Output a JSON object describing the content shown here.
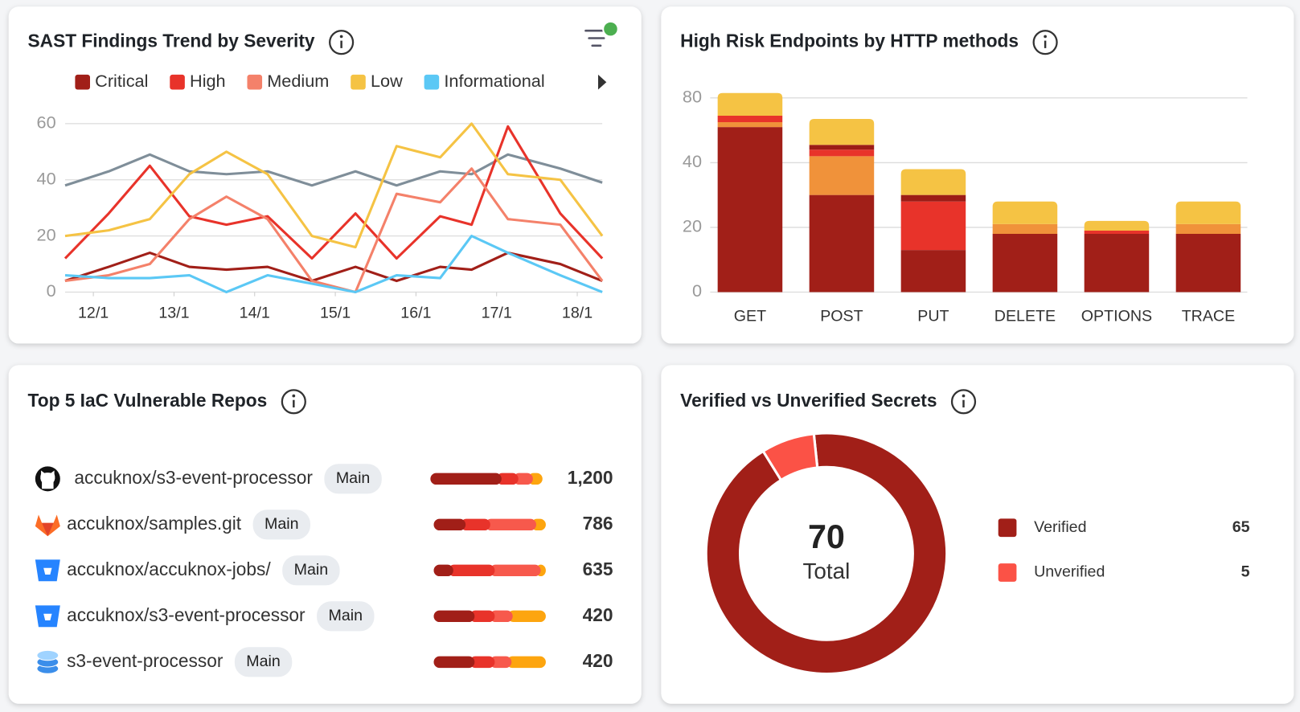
{
  "chart_data": [
    {
      "type": "line",
      "title": "SAST Findings Trend by Severity",
      "x": [
        11.65,
        12.19,
        12.7,
        13.19,
        13.65,
        14.16,
        14.71,
        15.25,
        15.76,
        16.3,
        16.69,
        17.14,
        17.79,
        18.31
      ],
      "xlim": [
        11.65,
        18.31
      ],
      "xticks": [
        {
          "value": 12,
          "label": "12/1"
        },
        {
          "value": 13,
          "label": "13/1"
        },
        {
          "value": 14,
          "label": "14/1"
        },
        {
          "value": 15,
          "label": "15/1"
        },
        {
          "value": 16,
          "label": "16/1"
        },
        {
          "value": 17,
          "label": "17/1"
        },
        {
          "value": 18,
          "label": "18/1"
        }
      ],
      "ylim": [
        0,
        60
      ],
      "yticks": [
        0,
        20,
        40,
        60
      ],
      "grid": true,
      "series": [
        {
          "color": "#7f8e99",
          "values": [
            38,
            43,
            49,
            43,
            42,
            43,
            38,
            43,
            38,
            43,
            42,
            49,
            44,
            39
          ]
        },
        {
          "name": "Critical",
          "color": "#a11f18",
          "values": [
            4,
            9,
            14,
            9,
            8,
            9,
            4,
            9,
            4,
            9,
            8,
            14,
            10,
            4
          ]
        },
        {
          "name": "High",
          "color": "#e8332a",
          "values": [
            12,
            28,
            45,
            27,
            24,
            27,
            12,
            28,
            12,
            27,
            24,
            59,
            28,
            12
          ]
        },
        {
          "name": "Medium",
          "color": "#f4816a",
          "values": [
            4,
            6,
            10,
            26,
            34,
            26,
            4,
            0,
            35,
            32,
            44,
            26,
            24,
            4
          ]
        },
        {
          "name": "Low",
          "color": "#f5c344",
          "values": [
            20,
            22,
            26,
            42,
            50,
            42,
            20,
            16,
            52,
            48,
            60,
            42,
            40,
            20
          ]
        },
        {
          "name": "Informational",
          "color": "#5bc8f5",
          "values": [
            6,
            5,
            5,
            6,
            0,
            6,
            3,
            0,
            6,
            5,
            20,
            14,
            6,
            0
          ]
        }
      ]
    },
    {
      "type": "bar",
      "stacked": true,
      "title": "High Risk Endpoints by HTTP methods",
      "categories": [
        "GET",
        "POST",
        "PUT",
        "DELETE",
        "OPTIONS",
        "TRACE"
      ],
      "ylim": [
        0,
        80
      ],
      "yticks": [
        0,
        20,
        40,
        80
      ],
      "yscale": "even-ticks",
      "grid": true,
      "series": [
        {
          "color": "#a11f18",
          "values": [
            62,
            30,
            13,
            18,
            18,
            18
          ]
        },
        {
          "color": "#f0923a",
          "values": [
            3,
            14,
            0,
            3,
            0,
            3
          ]
        },
        {
          "color": "#e8332a",
          "values": [
            4,
            4,
            15,
            0,
            1,
            0
          ]
        },
        {
          "color": "#9c1c16",
          "values": [
            0,
            3,
            2,
            0,
            0,
            0
          ]
        },
        {
          "color": "#f5c344",
          "values": [
            14,
            16,
            8,
            7,
            3,
            7
          ]
        }
      ]
    },
    {
      "type": "donut",
      "title": "Verified vs Unverified Secrets",
      "total": 70,
      "total_label": "Total",
      "categories": [
        "Verified",
        "Unverified"
      ],
      "values": [
        65,
        5
      ],
      "colors": [
        "#a11f18",
        "#fb5246"
      ]
    }
  ],
  "repos": {
    "title": "Top 5 IaC Vulnerable Repos",
    "segment_colors": [
      "#a11f18",
      "#e8332a",
      "#f7594c",
      "#fda50f"
    ],
    "rows": [
      {
        "name": "accuknox/s3-event-processor",
        "branch": "Main",
        "count": "1,200",
        "segments": [
          59,
          15,
          13,
          13
        ]
      },
      {
        "name": "accuknox/samples.git",
        "branch": "Main",
        "count": "786",
        "segments": [
          24,
          22,
          41,
          13
        ]
      },
      {
        "name": "accuknox/accuknox-jobs/",
        "branch": "Main",
        "count": "635",
        "segments": [
          13,
          37,
          41,
          9
        ]
      },
      {
        "name": "accuknox/s3-event-processor",
        "branch": "Main",
        "count": "420",
        "segments": [
          32,
          18,
          16,
          34
        ]
      },
      {
        "name": "s3-event-processor",
        "branch": "Main",
        "count": "420",
        "segments": [
          32,
          18,
          15,
          35
        ]
      }
    ]
  }
}
